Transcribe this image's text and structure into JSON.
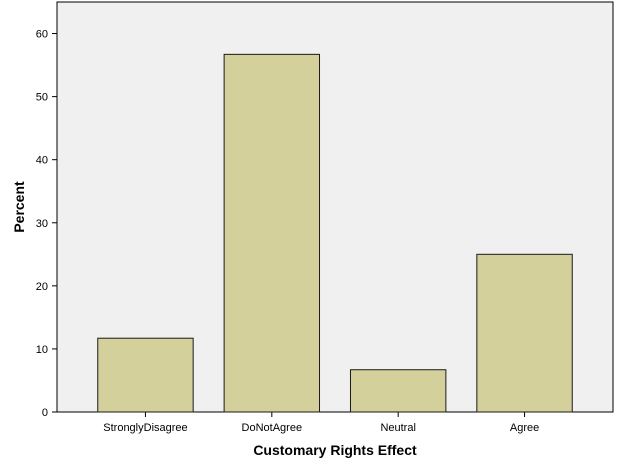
{
  "chart_data": {
    "type": "bar",
    "title": "",
    "xlabel": "Customary Rights Effect",
    "ylabel": "Percent",
    "categories": [
      "StronglyDisagree",
      "DoNotAgree",
      "Neutral",
      "Agree"
    ],
    "values": [
      11.7,
      56.7,
      6.7,
      25.0
    ],
    "ylim": [
      0,
      65
    ],
    "yticks": [
      0,
      10,
      20,
      30,
      40,
      50,
      60
    ],
    "grid": false,
    "legend": "none",
    "colors": {
      "bar_fill": "#d3d09b",
      "bar_stroke": "#1a1a1a",
      "plot_background": "#f0f0f0",
      "plot_border": "#000000"
    }
  }
}
